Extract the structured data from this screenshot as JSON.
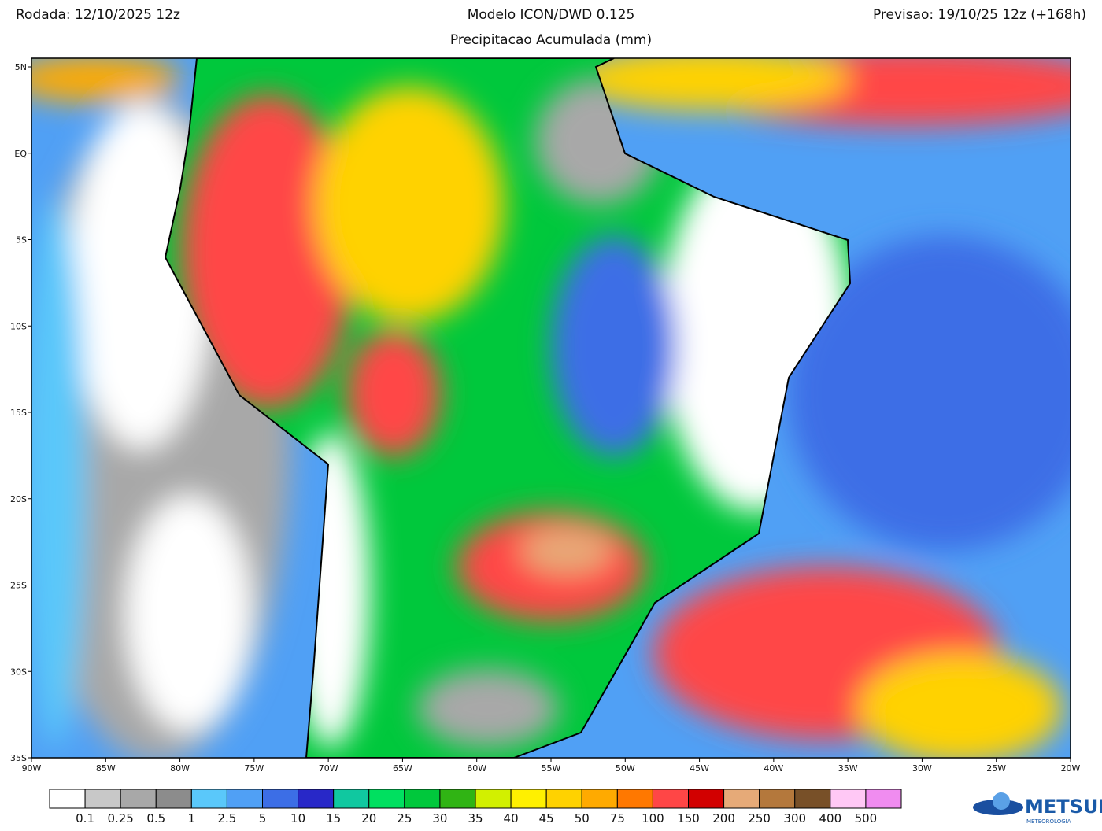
{
  "header": {
    "run": "Rodada: 12/10/2025 12z",
    "model": "Modelo ICON/DWD 0.125",
    "field": "Precipitacao Acumulada (mm)",
    "forecast": "Previsao: 19/10/25 12z (+168h)"
  },
  "map": {
    "lat_labels": [
      "5N",
      "EQ",
      "5S",
      "10S",
      "15S",
      "20S",
      "25S",
      "30S",
      "35S"
    ],
    "lon_labels": [
      "90W",
      "85W",
      "80W",
      "75W",
      "70W",
      "65W",
      "60W",
      "55W",
      "50W",
      "45W",
      "40W",
      "35W",
      "30W",
      "25W",
      "20W"
    ]
  },
  "colorbar": {
    "labels": [
      0.1,
      0.25,
      0.5,
      1,
      2.5,
      5,
      10,
      15,
      20,
      25,
      30,
      35,
      40,
      45,
      50,
      75,
      100,
      150,
      200,
      250,
      300,
      400,
      500
    ],
    "colors": [
      "#ffffff",
      "#c8c8c8",
      "#a8a8a8",
      "#8c8c8c",
      "#5ac8fa",
      "#50a0f5",
      "#3c6ee6",
      "#2828c8",
      "#10c8a0",
      "#00e060",
      "#00c83c",
      "#30b414",
      "#d2f000",
      "#fff000",
      "#ffd200",
      "#ffaa00",
      "#ff7800",
      "#ff4646",
      "#d20000",
      "#e6aa78",
      "#b4783c",
      "#785028",
      "#ffc8f5",
      "#f08cf0",
      "#e646e6",
      "#960096"
    ]
  },
  "logo": {
    "name": "METSUL",
    "sub": "METEOROLOGIA"
  }
}
